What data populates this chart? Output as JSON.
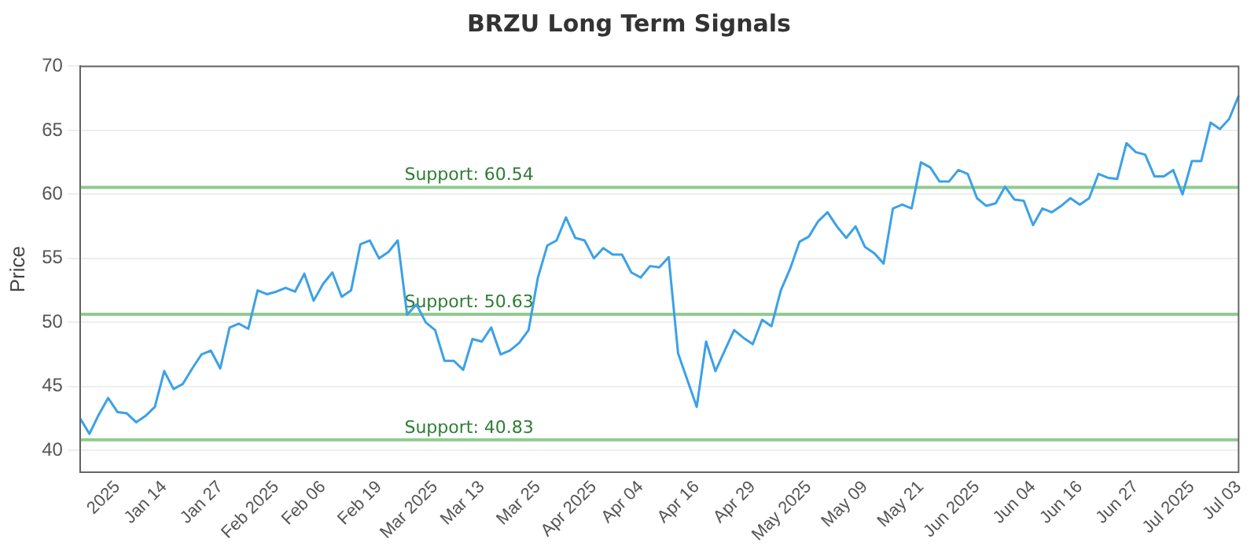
{
  "chart_data": {
    "type": "line",
    "title": "BRZU Long Term Signals",
    "ylabel": "Price",
    "categories": [
      null,
      null,
      null,
      null,
      "2025",
      null,
      null,
      null,
      null,
      "Jan 14",
      null,
      null,
      null,
      null,
      null,
      "Jan 27",
      null,
      null,
      null,
      null,
      null,
      "Feb 2025",
      null,
      null,
      null,
      null,
      "Feb 06",
      null,
      null,
      null,
      null,
      null,
      "Feb 19",
      null,
      null,
      null,
      null,
      null,
      "Mar 2025",
      null,
      null,
      null,
      null,
      "Mar 13",
      null,
      null,
      null,
      null,
      null,
      "Mar 25",
      null,
      null,
      null,
      null,
      null,
      "Apr 2025",
      null,
      null,
      null,
      null,
      "Apr 04",
      null,
      null,
      null,
      null,
      null,
      "Apr 16",
      null,
      null,
      null,
      null,
      null,
      "Apr 29",
      null,
      null,
      null,
      null,
      null,
      "May 2025",
      null,
      null,
      null,
      null,
      null,
      "May 09",
      null,
      null,
      null,
      null,
      null,
      "May 21",
      null,
      null,
      null,
      null,
      null,
      "Jun 2025",
      null,
      null,
      null,
      null,
      null,
      "Jun 04",
      null,
      null,
      null,
      null,
      "Jun 16",
      null,
      null,
      null,
      null,
      null,
      "Jun 27",
      null,
      null,
      null,
      null,
      null,
      "Jul 2025",
      null,
      null,
      null,
      null,
      "Jul 03"
    ],
    "series": [
      {
        "color": "#3ba1e8",
        "values": [
          42.5,
          41.3,
          42.8,
          44.1,
          43.0,
          42.9,
          42.2,
          42.7,
          43.4,
          46.2,
          44.8,
          45.2,
          46.4,
          47.5,
          47.8,
          46.4,
          49.6,
          49.9,
          49.5,
          52.5,
          52.2,
          52.4,
          52.7,
          52.4,
          53.8,
          51.7,
          53.0,
          53.9,
          52.0,
          52.5,
          56.1,
          56.4,
          55.0,
          55.5,
          56.4,
          50.6,
          51.4,
          50.0,
          49.4,
          47.0,
          47.0,
          46.3,
          48.7,
          48.5,
          49.6,
          47.5,
          47.8,
          48.4,
          49.4,
          53.5,
          56.0,
          56.4,
          58.2,
          56.6,
          56.4,
          55.0,
          55.8,
          55.3,
          55.3,
          53.9,
          53.5,
          54.4,
          54.3,
          55.1,
          47.6,
          45.5,
          43.4,
          48.5,
          46.2,
          47.8,
          49.4,
          48.8,
          48.3,
          50.2,
          49.7,
          52.5,
          54.2,
          56.3,
          56.7,
          57.9,
          58.6,
          57.5,
          56.6,
          57.5,
          55.9,
          55.4,
          54.6,
          58.9,
          59.2,
          58.9,
          62.5,
          62.1,
          61.0,
          61.0,
          61.9,
          61.6,
          59.7,
          59.1,
          59.3,
          60.6,
          59.6,
          59.5,
          57.6,
          58.9,
          58.6,
          59.1,
          59.7,
          59.2,
          59.7,
          61.6,
          61.3,
          61.2,
          64.0,
          63.3,
          63.1,
          61.4,
          61.4,
          61.9,
          60.0,
          62.6,
          62.6,
          65.6,
          65.1,
          65.9,
          67.7
        ]
      }
    ],
    "ylim": [
      38.3,
      70
    ],
    "yticks": [
      40,
      45,
      50,
      55,
      60,
      65,
      70
    ],
    "grid": "y",
    "legend": false,
    "marker": "none",
    "line_style": "solid",
    "ref_lines": [
      {
        "axis": "y",
        "value": 60.54,
        "label": "Support: 60.54",
        "color": "#8fcb8f"
      },
      {
        "axis": "y",
        "value": 50.63,
        "label": "Support: 50.63",
        "color": "#8fcb8f"
      },
      {
        "axis": "y",
        "value": 40.83,
        "label": "Support: 40.83",
        "color": "#8fcb8f"
      }
    ]
  }
}
